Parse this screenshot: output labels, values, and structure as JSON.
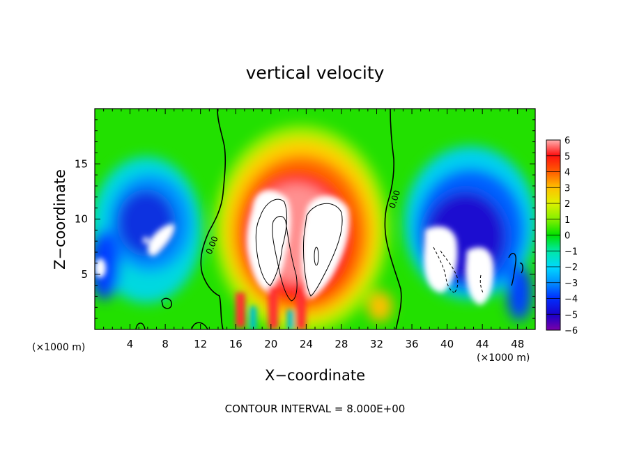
{
  "chart_data": {
    "type": "heatmap",
    "title": "vertical velocity",
    "xlabel": "X−coordinate",
    "ylabel": "Z−coordinate",
    "x_unit": "(×1000 m)",
    "y_unit": "(×1000 m)",
    "xlim": [
      0,
      50
    ],
    "ylim": [
      0,
      20
    ],
    "x_ticks": [
      4,
      8,
      12,
      16,
      20,
      24,
      28,
      32,
      36,
      40,
      44,
      48
    ],
    "y_ticks": [
      5,
      10,
      15
    ],
    "x_tick_labels": [
      "4",
      "8",
      "12",
      "16",
      "20",
      "24",
      "28",
      "32",
      "36",
      "40",
      "44",
      "48"
    ],
    "y_tick_labels": [
      "5",
      "10",
      "15"
    ],
    "colorbar": {
      "min": -6,
      "max": 6,
      "ticks": [
        6,
        5,
        4,
        3,
        2,
        1,
        0,
        -1,
        -2,
        -3,
        -4,
        -5,
        -6
      ],
      "tick_labels": [
        "6",
        "5",
        "4",
        "3",
        "2",
        "1",
        "0",
        "−1",
        "−2",
        "−3",
        "−4",
        "−5",
        "−6"
      ],
      "colors": [
        "#7a00a8",
        "#1a00c8",
        "#0030ff",
        "#0090ff",
        "#00d8ff",
        "#00e8a0",
        "#00e000",
        "#80f000",
        "#e0f000",
        "#ffc000",
        "#ff6000",
        "#ff1010",
        "#ff8888",
        "#ffc0c0"
      ]
    },
    "contour_labels": [
      "0.00",
      "0.00"
    ],
    "caption": "CONTOUR INTERVAL = 8.000E+00",
    "features": [
      {
        "kind": "updraft-core",
        "x": 23,
        "z": 9,
        "value": 6
      },
      {
        "kind": "downdraft",
        "x": 6.5,
        "z": 9,
        "value": -5
      },
      {
        "kind": "downdraft",
        "x": 42,
        "z": 8.5,
        "value": -5
      }
    ]
  }
}
